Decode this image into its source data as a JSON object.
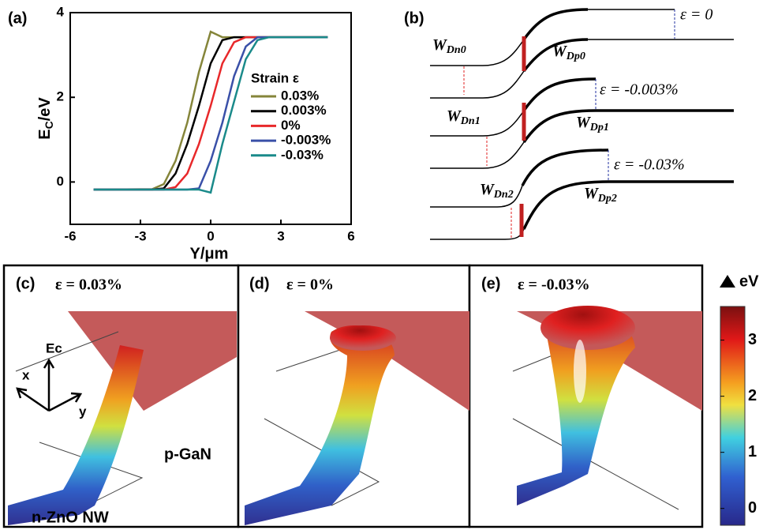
{
  "chart_data": {
    "type": "line",
    "panel_label": "(a)",
    "x_label": "Y/μm",
    "y_label": [
      "E",
      "C",
      "/eV"
    ],
    "xlim": [
      -6,
      6
    ],
    "ylim": [
      -1,
      4
    ],
    "xticks": [
      -6,
      -3,
      0,
      3,
      6
    ],
    "yticks": [
      0,
      2,
      4
    ],
    "grid": false,
    "legend_title": "Strain ε",
    "x": [
      -5,
      -2.5,
      -2,
      -1.5,
      -1,
      -0.5,
      0,
      0.5,
      1,
      1.5,
      2,
      2.5,
      5
    ],
    "series": [
      {
        "name": "0.03%",
        "color": "#85853a",
        "values": [
          -0.18,
          -0.17,
          -0.05,
          0.5,
          1.4,
          2.6,
          3.55,
          3.42,
          3.42,
          3.42,
          3.42,
          3.42,
          3.42
        ]
      },
      {
        "name": "0.003%",
        "color": "#000000",
        "values": [
          -0.18,
          -0.18,
          -0.15,
          0.2,
          0.9,
          1.8,
          2.8,
          3.35,
          3.42,
          3.42,
          3.42,
          3.42,
          3.42
        ]
      },
      {
        "name": "0%",
        "color": "#e8282a",
        "values": [
          -0.18,
          -0.18,
          -0.18,
          -0.12,
          0.2,
          0.9,
          1.8,
          2.8,
          3.3,
          3.42,
          3.42,
          3.42,
          3.42
        ]
      },
      {
        "name": "-0.003%",
        "color": "#3a50a8",
        "values": [
          -0.18,
          -0.18,
          -0.18,
          -0.18,
          -0.18,
          -0.15,
          0.5,
          1.4,
          2.5,
          3.2,
          3.42,
          3.42,
          3.42
        ]
      },
      {
        "name": "-0.03%",
        "color": "#1a8a8a",
        "values": [
          -0.18,
          -0.18,
          -0.18,
          -0.18,
          -0.18,
          -0.18,
          -0.25,
          0.9,
          1.9,
          2.9,
          3.35,
          3.42,
          3.42
        ]
      }
    ]
  },
  "band_diagram": {
    "panel_label": "(b)",
    "strains": [
      "ε = 0",
      "ε = -0.003%",
      "ε = -0.03%"
    ],
    "widths": [
      {
        "symbol": "W",
        "sub": "Dn0"
      },
      {
        "symbol": "W",
        "sub": "Dp0"
      },
      {
        "symbol": "W",
        "sub": "Dn1"
      },
      {
        "symbol": "W",
        "sub": "Dp1"
      },
      {
        "symbol": "W",
        "sub": "Dn2"
      },
      {
        "symbol": "W",
        "sub": "Dp2"
      }
    ]
  },
  "simulations": {
    "panels": [
      {
        "label": "(c)",
        "strain": "ε = 0.03%"
      },
      {
        "label": "(d)",
        "strain": "ε = 0%"
      },
      {
        "label": "(e)",
        "strain": "ε = -0.03%"
      }
    ],
    "axes": [
      "Ec",
      "x",
      "y"
    ],
    "materials": [
      "p-GaN",
      "n-ZnO NW"
    ]
  },
  "colorbar": {
    "label": "eV",
    "lim": [
      -0.3,
      3.6
    ],
    "ticks": [
      0,
      1,
      2,
      3
    ]
  }
}
